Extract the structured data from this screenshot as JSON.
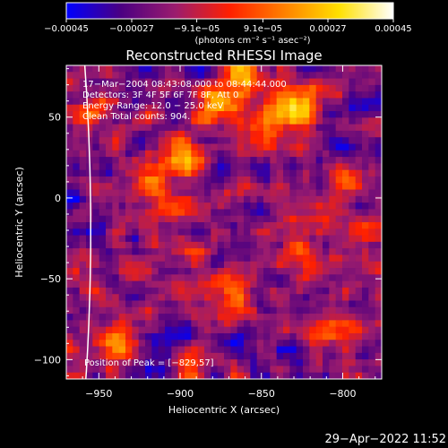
{
  "chart_data": {
    "type": "heatmap",
    "title": "Reconstructed RHESSI Image",
    "xlabel": "Heliocentric X (arcsec)",
    "ylabel": "Heliocentric Y (arcsec)",
    "xlim": [
      -970,
      -776
    ],
    "ylim": [
      -112,
      82
    ],
    "x_ticks": [
      -950,
      -900,
      -850,
      -800
    ],
    "y_ticks": [
      -100,
      -50,
      0,
      50
    ],
    "x_tick_labels": [
      "−950",
      "−900",
      "−850",
      "−800"
    ],
    "y_tick_labels": [
      "−100",
      "−50",
      "0",
      "50"
    ],
    "colorbar": {
      "min": -0.00045,
      "max": 0.00045,
      "ticks": [
        -0.00045,
        -0.00027,
        -9.1e-05,
        9.1e-05,
        0.00027,
        0.00045
      ],
      "tick_labels": [
        "−0.00045",
        "−0.00027",
        "−9.1e−05",
        "9.1e−05",
        "0.00027",
        "0.00045"
      ],
      "unit_label": "(photons cm⁻² s⁻¹ asec⁻²)",
      "colormap_stops": [
        "#0000ff",
        "#4b0082",
        "#9b1c6e",
        "#ff2000",
        "#ff8000",
        "#ffe000",
        "#ffffff"
      ]
    },
    "annotations": [
      "17−Mar−2004 08:43:08.000 to 08:44:44.000",
      "Detectors: 3F 4F 5F 6F 7F 8F, Att 0",
      "Energy Range: 12.0 − 25.0 keV",
      "Clean     Total counts: 904.",
      "Position of Peak = [−829,57]"
    ],
    "peak": {
      "x": -829,
      "y": 57
    },
    "grid": false,
    "limb_visible": true
  },
  "footer": {
    "timestamp": "29−Apr−2022 11:52"
  },
  "colors": {
    "background": "#000000",
    "axis": "#ffffff",
    "limb": "#ffffff"
  }
}
